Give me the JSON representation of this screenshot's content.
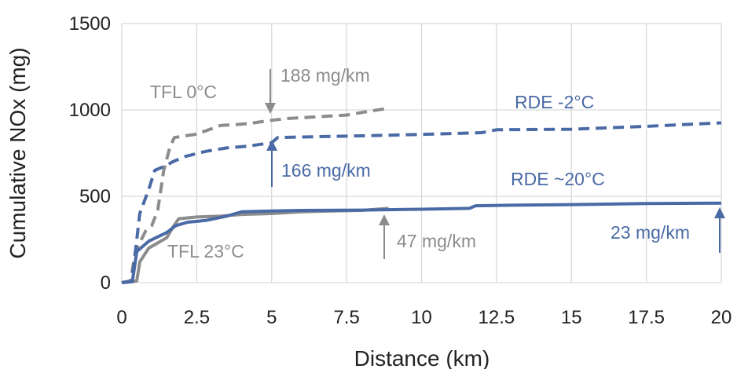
{
  "chart_data": {
    "type": "line",
    "xlabel": "Distance (km)",
    "ylabel": "Cumulative NOx (mg)",
    "xlim": [
      0,
      20
    ],
    "ylim": [
      0,
      1500
    ],
    "x_ticks": [
      0,
      2.5,
      5,
      7.5,
      10,
      12.5,
      15,
      17.5,
      20
    ],
    "x_tick_labels": [
      "0",
      "2.5",
      "5",
      "7.5",
      "10",
      "12.5",
      "15",
      "17.5",
      "20"
    ],
    "y_ticks": [
      0,
      500,
      1000,
      1500
    ],
    "y_tick_labels": [
      "0",
      "500",
      "1000",
      "1500"
    ],
    "grid": true,
    "series": [
      {
        "name": "TFL 0°C",
        "color": "#8c8c8c",
        "style": "dashed",
        "points": [
          [
            0,
            0
          ],
          [
            0.3,
            10
          ],
          [
            0.45,
            180
          ],
          [
            0.8,
            300
          ],
          [
            1.0,
            330
          ],
          [
            1.2,
            420
          ],
          [
            1.4,
            650
          ],
          [
            1.6,
            780
          ],
          [
            1.75,
            840
          ],
          [
            2.5,
            860
          ],
          [
            3.3,
            910
          ],
          [
            4.2,
            920
          ],
          [
            5.0,
            940
          ],
          [
            5.5,
            950
          ],
          [
            6.5,
            960
          ],
          [
            7.5,
            970
          ],
          [
            8.0,
            985
          ],
          [
            8.9,
            1010
          ]
        ]
      },
      {
        "name": "RDE -2°C",
        "color": "#4a6aa5",
        "style": "dashed",
        "points": [
          [
            0,
            0
          ],
          [
            0.3,
            10
          ],
          [
            0.4,
            100
          ],
          [
            0.6,
            400
          ],
          [
            0.9,
            540
          ],
          [
            1.1,
            650
          ],
          [
            1.5,
            680
          ],
          [
            1.7,
            700
          ],
          [
            2.1,
            730
          ],
          [
            2.8,
            760
          ],
          [
            3.5,
            780
          ],
          [
            4.2,
            790
          ],
          [
            5.0,
            810
          ],
          [
            5.2,
            840
          ],
          [
            6.5,
            845
          ],
          [
            8.0,
            850
          ],
          [
            10.0,
            858
          ],
          [
            12.0,
            868
          ],
          [
            12.5,
            885
          ],
          [
            15.0,
            888
          ],
          [
            17.5,
            905
          ],
          [
            20,
            925
          ]
        ]
      },
      {
        "name": "TFL 23°C",
        "color": "#8c8c8c",
        "style": "solid",
        "points": [
          [
            0,
            0
          ],
          [
            0.5,
            10
          ],
          [
            0.6,
            120
          ],
          [
            0.9,
            200
          ],
          [
            1.2,
            230
          ],
          [
            1.5,
            260
          ],
          [
            1.7,
            320
          ],
          [
            1.9,
            370
          ],
          [
            2.5,
            380
          ],
          [
            3.3,
            385
          ],
          [
            4.0,
            395
          ],
          [
            5.0,
            400
          ],
          [
            6.0,
            410
          ],
          [
            7.0,
            415
          ],
          [
            8.0,
            418
          ],
          [
            8.9,
            430
          ]
        ]
      },
      {
        "name": "RDE ~20°C",
        "color": "#4a6aa5",
        "style": "solid",
        "points": [
          [
            0,
            0
          ],
          [
            0.35,
            5
          ],
          [
            0.5,
            180
          ],
          [
            0.9,
            240
          ],
          [
            1.5,
            290
          ],
          [
            1.8,
            330
          ],
          [
            2.2,
            350
          ],
          [
            2.8,
            360
          ],
          [
            3.5,
            385
          ],
          [
            4.0,
            410
          ],
          [
            5.0,
            415
          ],
          [
            6.0,
            418
          ],
          [
            8.0,
            420
          ],
          [
            10.0,
            425
          ],
          [
            11.6,
            430
          ],
          [
            11.8,
            445
          ],
          [
            13.0,
            448
          ],
          [
            15.0,
            452
          ],
          [
            17.5,
            458
          ],
          [
            20,
            460
          ]
        ]
      }
    ],
    "labels": {
      "tfl0": "TFL 0°C",
      "rde_m2": "RDE -2°C",
      "tfl23": "TFL 23°C",
      "rde20": "RDE ~20°C"
    },
    "annotations": {
      "a188": "188 mg/km",
      "a166": "166 mg/km",
      "a47": "47 mg/km",
      "a23": "23 mg/km"
    },
    "colors": {
      "grey": "#8c8c8c",
      "blue": "#4a6aa5",
      "grid": "#d9d9d9"
    }
  }
}
